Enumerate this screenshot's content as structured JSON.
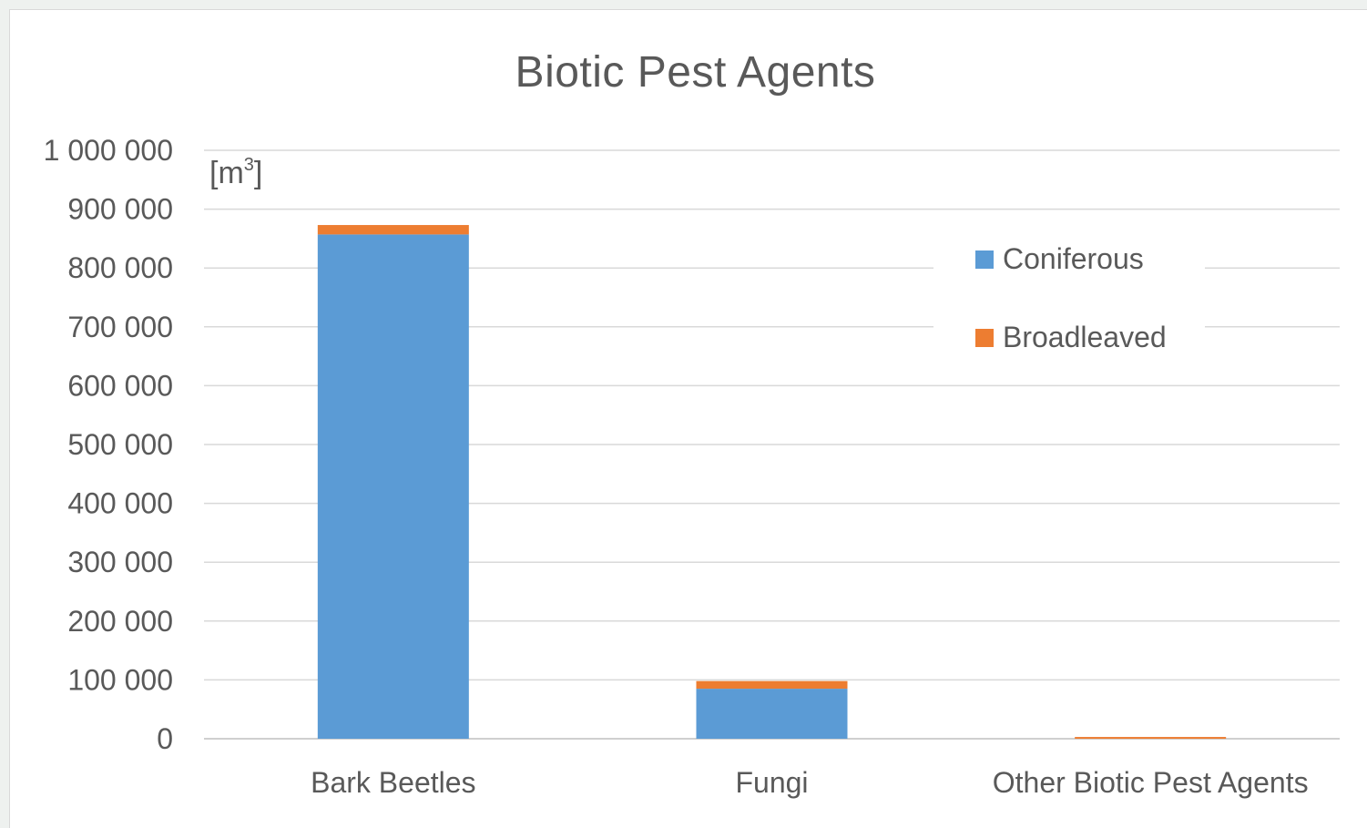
{
  "chart_data": {
    "type": "bar",
    "stacked": true,
    "title": "Biotic Pest Agents",
    "unit_label": {
      "base": "[m",
      "sup": "3",
      "end": "]"
    },
    "categories": [
      "Bark Beetles",
      "Fungi",
      "Other Biotic Pest Agents"
    ],
    "series": [
      {
        "name": "Coniferous",
        "color": "#5b9bd5",
        "values": [
          857000,
          85000,
          0
        ]
      },
      {
        "name": "Broadleaved",
        "color": "#ed7d31",
        "values": [
          16000,
          13000,
          3000
        ]
      }
    ],
    "ylim": [
      0,
      1000000
    ],
    "yticks": [
      {
        "value": 0,
        "label": "0"
      },
      {
        "value": 100000,
        "label": "100 000"
      },
      {
        "value": 200000,
        "label": "200 000"
      },
      {
        "value": 300000,
        "label": "300 000"
      },
      {
        "value": 400000,
        "label": "400 000"
      },
      {
        "value": 500000,
        "label": "500 000"
      },
      {
        "value": 600000,
        "label": "600 000"
      },
      {
        "value": 700000,
        "label": "700 000"
      },
      {
        "value": 800000,
        "label": "800 000"
      },
      {
        "value": 900000,
        "label": "900 000"
      },
      {
        "value": 1000000,
        "label": "1 000 000"
      }
    ],
    "grid": true,
    "legend_position": "right"
  }
}
